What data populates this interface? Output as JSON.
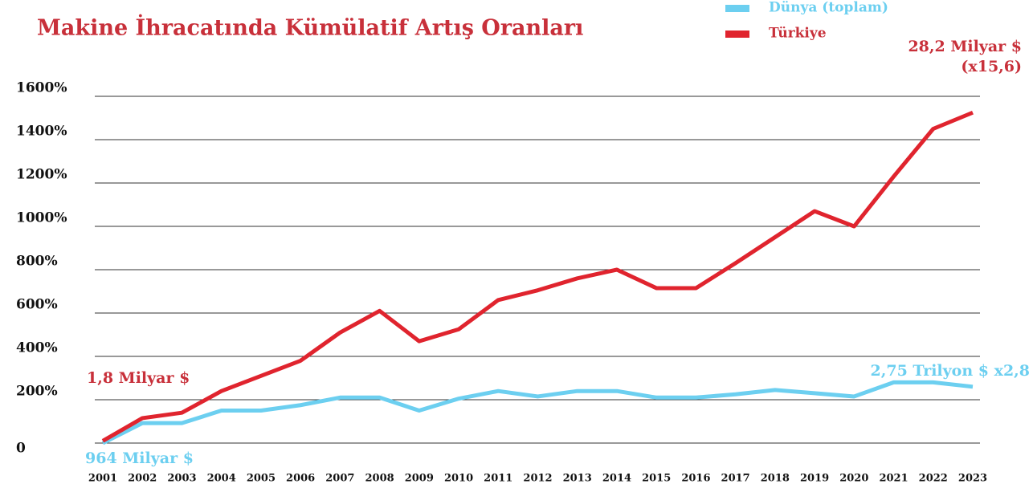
{
  "chart_data": {
    "type": "line",
    "title": "Makine İhracatında Kümülatif Artış Oranları",
    "categories": [
      "2001",
      "2002",
      "2003",
      "2004",
      "2005",
      "2006",
      "2007",
      "2008",
      "2009",
      "2010",
      "2011",
      "2012",
      "2013",
      "2014",
      "2015",
      "2016",
      "2017",
      "2018",
      "2019",
      "2020",
      "2021",
      "2022",
      "2023"
    ],
    "series": [
      {
        "name": "Dünya (toplam)",
        "color": "#6ccff0",
        "values": [
          0,
          92,
          92,
          150,
          150,
          175,
          210,
          210,
          150,
          205,
          240,
          215,
          240,
          240,
          210,
          210,
          225,
          245,
          230,
          215,
          280,
          280,
          260
        ]
      },
      {
        "name": "Türkiye",
        "color": "#e0242e",
        "values": [
          10,
          115,
          140,
          240,
          310,
          380,
          510,
          610,
          470,
          525,
          660,
          705,
          760,
          800,
          715,
          715,
          830,
          950,
          1070,
          1000,
          1230,
          1450,
          1525
        ]
      }
    ],
    "ylim": [
      0,
      1600
    ],
    "yticks": [
      0,
      {
        "value": 200,
        "label": "200%"
      },
      {
        "value": 400,
        "label": "400%"
      },
      {
        "value": 600,
        "label": "600%"
      },
      {
        "value": 800,
        "label": "800%"
      },
      {
        "value": 1000,
        "label": "1000%"
      },
      {
        "value": 1200,
        "label": "1200%"
      },
      {
        "value": 1400,
        "label": "1400%"
      },
      {
        "value": 1600,
        "label": "1600%"
      }
    ],
    "grid": true,
    "annotations": [
      "1,8 Milyar $",
      "964 Milyar $",
      "2,75 Trilyon $ x2,8",
      "28,2 Milyar $",
      "(x15,6)"
    ]
  }
}
